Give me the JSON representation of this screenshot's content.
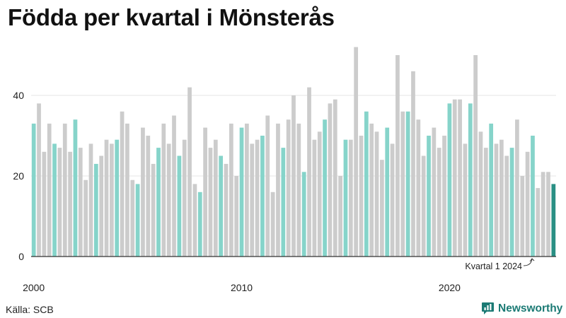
{
  "chart_data": {
    "type": "bar",
    "title": "Födda per kvartal i Mönsterås",
    "source": "Källa: SCB",
    "brand": "Newsworthy",
    "x_tick_labels": [
      "2000",
      "2010",
      "2020"
    ],
    "y_ticks": [
      0,
      20,
      40
    ],
    "ylim": [
      0,
      52
    ],
    "grid": true,
    "annotation": "Kvartal 1 2024",
    "colors": {
      "q1": "#86d4ca",
      "other": "#cccccc",
      "latest": "#2a8f84",
      "grid": "#e4e4e4",
      "axis": "#333333",
      "brand": "#1b7a74"
    },
    "series": [
      {
        "start_year": 2000,
        "values": [
          33,
          38,
          26,
          33,
          28,
          27,
          33,
          26,
          34,
          27,
          19,
          28,
          23,
          25,
          29,
          28,
          29,
          36,
          33,
          19,
          18,
          32,
          30,
          23,
          27,
          33,
          28,
          35,
          25,
          29,
          42,
          18,
          16,
          32,
          27,
          29,
          25,
          23,
          33,
          20,
          32,
          33,
          28,
          29,
          30,
          35,
          16,
          33,
          27,
          34,
          40,
          33,
          21,
          42,
          29,
          31,
          34,
          38,
          39,
          20,
          29,
          29,
          52,
          30,
          36,
          33,
          31,
          24,
          32,
          28,
          50,
          36,
          36,
          46,
          34,
          25,
          30,
          32,
          27,
          30,
          38,
          39,
          39,
          28,
          38,
          50,
          31,
          27,
          33,
          28,
          29,
          25,
          27,
          34,
          20,
          26,
          30,
          17,
          21,
          21,
          18
        ]
      }
    ]
  }
}
